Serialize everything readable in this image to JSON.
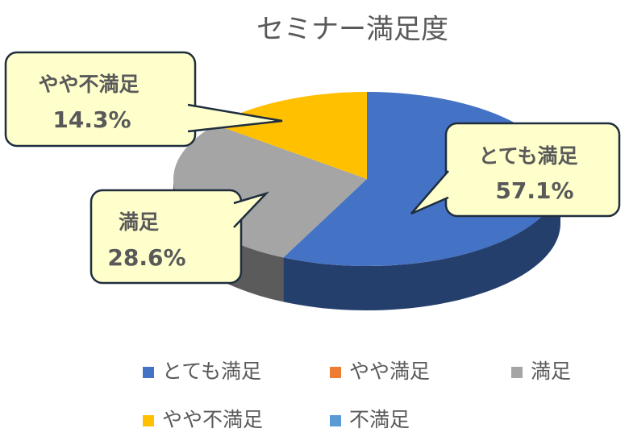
{
  "chart_data": {
    "type": "pie",
    "title": "セミナー満足度",
    "categories": [
      "とても満足",
      "やや満足",
      "満足",
      "やや不満足",
      "不満足"
    ],
    "values": [
      57.1,
      0,
      28.6,
      14.3,
      0
    ],
    "value_labels": [
      "57.1%",
      null,
      "28.6%",
      "14.3%",
      null
    ],
    "colors": [
      "#4472c4",
      "#ed7d31",
      "#a5a5a5",
      "#ffc000",
      "#5b9bd5"
    ],
    "legend": "bottom"
  }
}
